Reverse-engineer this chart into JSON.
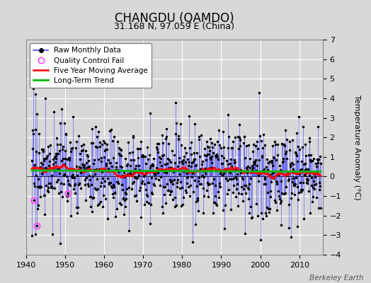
{
  "title": "CHANGDU (QAMDO)",
  "subtitle": "31.168 N, 97.059 E (China)",
  "ylabel": "Temperature Anomaly (°C)",
  "credit": "Berkeley Earth",
  "xlim": [
    1940,
    2016
  ],
  "ylim": [
    -4,
    7
  ],
  "yticks": [
    -4,
    -3,
    -2,
    -1,
    0,
    1,
    2,
    3,
    4,
    5,
    6,
    7
  ],
  "xticks": [
    1940,
    1950,
    1960,
    1970,
    1980,
    1990,
    2000,
    2010
  ],
  "bg_color": "#d8d8d8",
  "plot_bg_color": "#d8d8d8",
  "raw_line_color": "#4444ff",
  "raw_dot_color": "#000000",
  "ma_color": "#ff0000",
  "trend_color": "#00bb00",
  "qc_color": "#ff44ff",
  "seed": 17
}
